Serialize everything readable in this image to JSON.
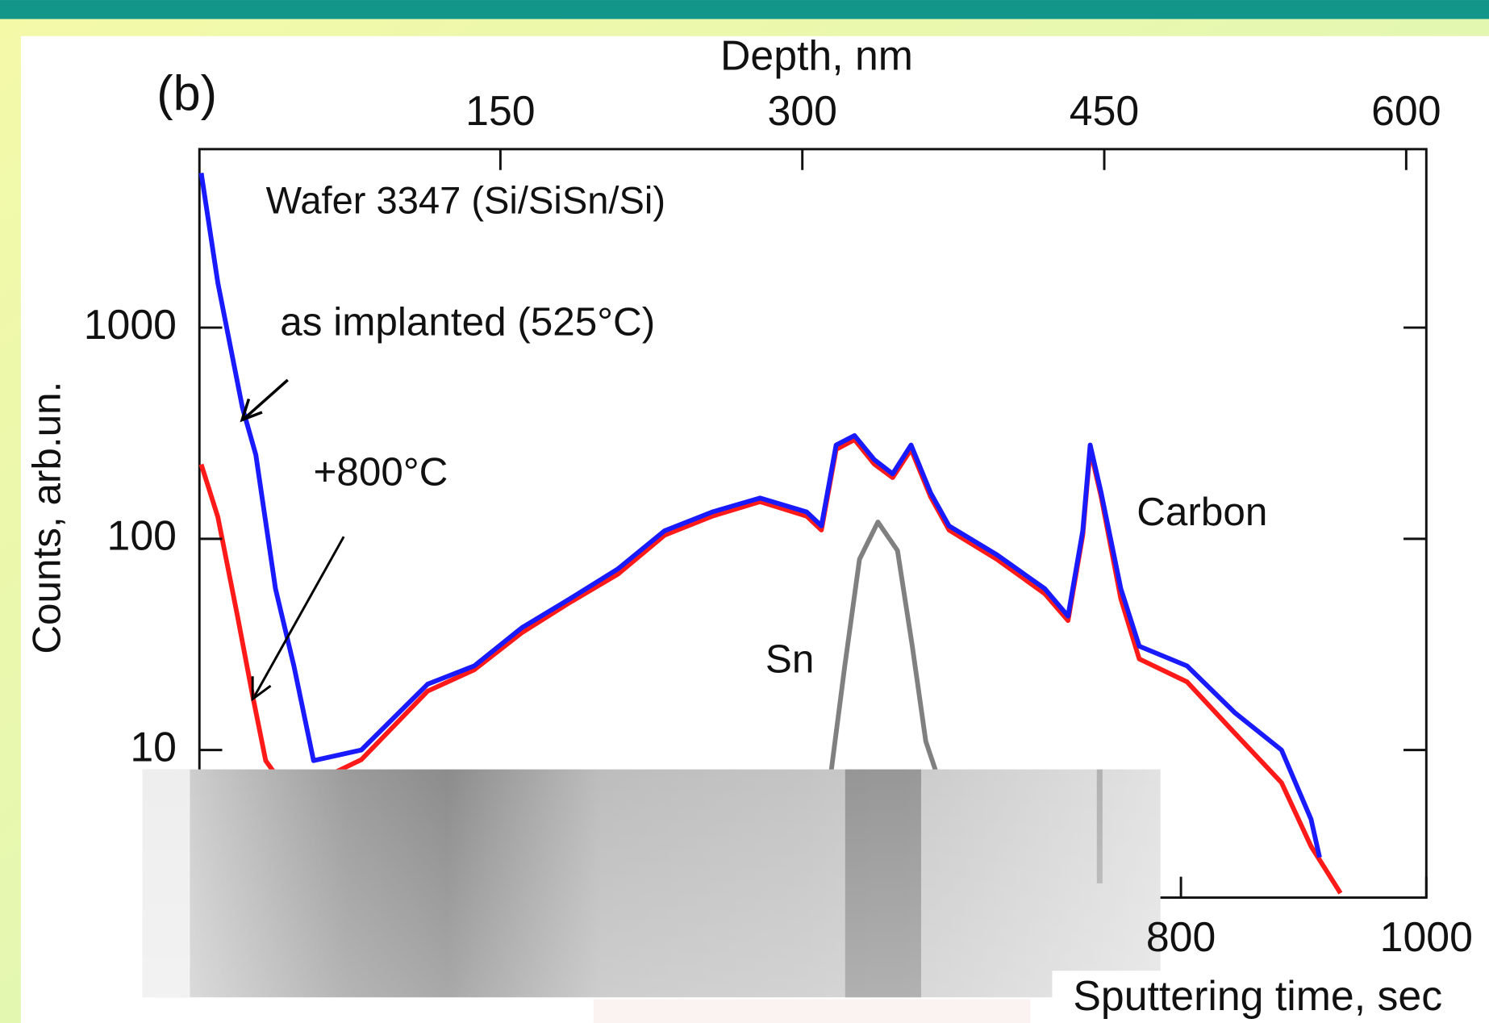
{
  "chart_data": {
    "type": "line",
    "xlabel": "Sputtering time, sec",
    "ylabel": "Counts, arb.un.",
    "x2label": "Depth, nm",
    "annotations": [
      "(b)",
      "Wafer 3347 (Si/SiSn/Si)",
      "Carbon"
    ],
    "xlim": [
      0,
      1000
    ],
    "xticks": [
      800,
      1000
    ],
    "x2lim": [
      0,
      610
    ],
    "x2ticks": [
      150,
      300,
      450,
      600
    ],
    "ylim": [
      2,
      7000
    ],
    "yticks": [
      10,
      100,
      1000
    ],
    "log_y": true,
    "series": [
      {
        "name": "+800°C",
        "color": "#ff1a1a",
        "x": [
          1.5,
          15,
          31,
          43,
          54,
          70,
          93,
          132,
          186,
          224,
          263,
          302,
          341,
          379,
          418,
          457,
          495,
          507,
          519,
          534,
          550,
          565,
          580,
          596,
          611,
          650,
          689,
          708,
          720,
          726,
          735,
          751,
          766,
          805,
          844,
          882,
          906,
          930
        ],
        "values": [
          225,
          127,
          43,
          18.5,
          8.9,
          6.6,
          7,
          9,
          19,
          24,
          36,
          50,
          68,
          104,
          128,
          150,
          128,
          110,
          265,
          295,
          226,
          195,
          265,
          158,
          110,
          80,
          55,
          41,
          104,
          265,
          158,
          52,
          27,
          21,
          12,
          7,
          3.5,
          2.1
        ]
      },
      {
        "name": "as implanted (525°C)",
        "color": "#1a1aff",
        "x": [
          1.5,
          15,
          35,
          46,
          62,
          77,
          93,
          132,
          186,
          224,
          263,
          302,
          341,
          379,
          418,
          457,
          495,
          507,
          519,
          534,
          550,
          565,
          580,
          596,
          611,
          650,
          689,
          708,
          720,
          726,
          735,
          751,
          766,
          805,
          844,
          882,
          906,
          913
        ],
        "values": [
          5400,
          1630,
          420,
          250,
          58,
          25,
          8.9,
          10,
          20.5,
          25,
          38,
          52,
          72,
          109,
          134,
          156,
          134,
          115,
          278,
          308,
          237,
          203,
          278,
          165,
          115,
          84,
          58,
          43,
          109,
          278,
          165,
          58,
          31,
          25,
          15,
          10,
          4.7,
          3.1
        ]
      },
      {
        "name": "Sn",
        "color": "#808080",
        "x": [
          515,
          526,
          538,
          553,
          569,
          581,
          592,
          600
        ],
        "values": [
          8,
          25,
          80,
          120,
          88,
          31,
          11,
          8
        ]
      }
    ]
  }
}
